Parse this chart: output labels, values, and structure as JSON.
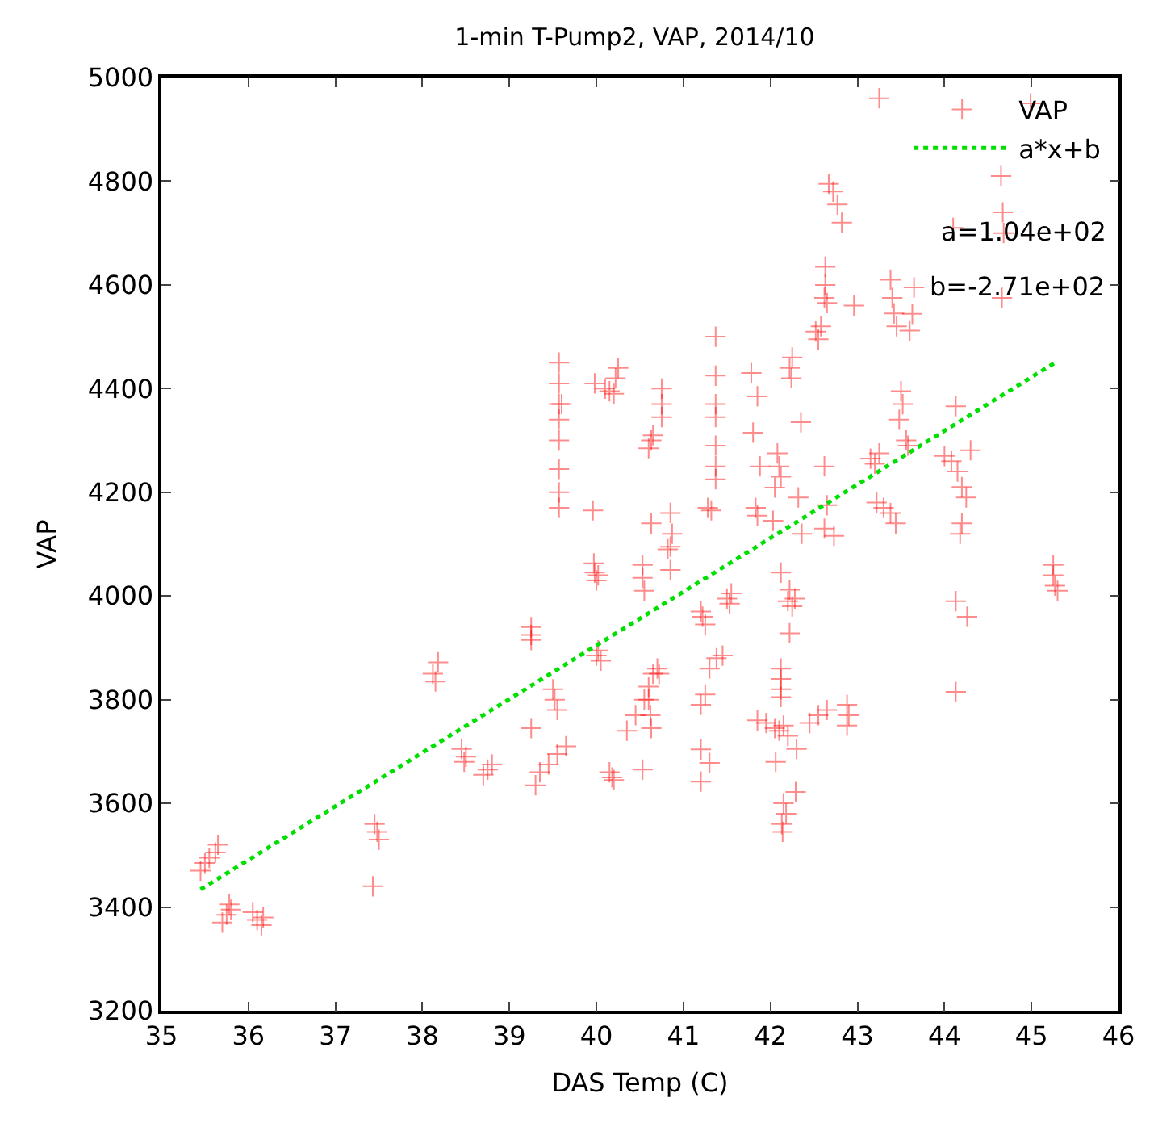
{
  "chart_data": {
    "type": "scatter",
    "title": "1-min T-Pump2, VAP, 2014/10",
    "xlabel": "DAS Temp (C)",
    "ylabel": "VAP",
    "xlim": [
      35,
      46
    ],
    "xticks": [
      35,
      36,
      37,
      38,
      39,
      40,
      41,
      42,
      43,
      44,
      45,
      46
    ],
    "ylim": [
      3200,
      5000
    ],
    "yticks": [
      3200,
      3400,
      3600,
      3800,
      4000,
      4200,
      4400,
      4600,
      4800,
      5000
    ],
    "legend": "top right",
    "annotations": [
      "a=1.04e+02",
      "b=-2.71e+02"
    ],
    "series": [
      {
        "name": "VAP",
        "color": "#ff0000",
        "marker": "cross",
        "x": [
          35.45,
          35.5,
          35.55,
          35.62,
          35.65,
          35.7,
          35.75,
          35.8,
          35.78,
          36.05,
          36.1,
          36.15,
          36.17,
          37.45,
          37.48,
          37.5,
          37.43,
          38.12,
          38.15,
          38.18,
          38.45,
          38.5,
          38.48,
          38.7,
          38.75,
          38.8,
          39.25,
          39.25,
          39.25,
          39.25,
          39.35,
          39.45,
          39.55,
          39.65,
          39.3,
          39.5,
          39.52,
          39.55,
          39.98,
          40.0,
          40.02,
          39.97,
          40.0,
          40.05,
          40.02,
          40.15,
          40.18,
          40.2,
          40.53,
          40.53,
          40.55,
          40.35,
          40.45,
          40.55,
          40.6,
          40.62,
          40.63,
          40.82,
          40.85,
          40.65,
          40.7,
          40.6,
          40.72,
          40.53,
          41.22,
          41.25,
          41.2,
          41.5,
          41.53,
          41.55,
          41.3,
          41.38,
          41.45,
          41.25,
          41.2,
          41.2,
          41.3,
          41.2,
          42.2,
          42.25,
          42.28,
          42.22,
          42.12,
          42.22,
          42.12,
          42.12,
          42.12,
          42.12,
          41.85,
          41.95,
          42.05,
          42.1,
          42.15,
          42.2,
          42.06,
          42.3,
          42.29,
          42.15,
          42.18,
          42.13,
          42.14,
          42.45,
          42.55,
          42.65,
          42.88,
          42.9,
          42.88,
          44.13,
          44.26,
          44.13,
          45.25,
          45.25,
          45.27,
          45.3,
          42.73,
          40.6,
          40.63,
          40.65,
          40.75,
          40.75,
          40.75,
          40.63,
          40.85,
          40.87,
          40.85,
          41.37,
          41.37,
          41.37,
          41.37,
          41.37,
          41.37,
          41.37,
          41.28,
          41.32,
          41.78,
          41.85,
          41.8,
          41.88,
          41.83,
          41.85,
          42.08,
          42.1,
          42.12,
          42.05,
          42.03,
          42.22,
          42.24,
          42.25,
          42.52,
          42.55,
          42.58,
          42.62,
          42.65,
          42.63,
          42.63,
          42.67,
          42.72,
          42.77,
          42.82,
          42.96,
          42.35,
          42.32,
          42.36,
          42.62,
          42.65,
          42.62,
          43.15,
          43.2,
          43.25,
          43.22,
          43.3,
          43.38,
          43.44,
          43.38,
          43.4,
          43.42,
          43.45,
          43.5,
          43.52,
          43.48,
          43.56,
          43.58,
          43.65,
          43.63,
          43.6,
          43.25,
          44.99,
          44.65,
          44.67,
          44.68,
          44.1,
          44.66,
          44.13,
          44.0,
          44.08,
          44.15,
          44.2,
          44.25,
          44.3,
          44.2,
          44.18,
          39.57,
          39.57,
          39.57,
          39.57,
          39.57,
          39.57,
          39.57,
          39.57,
          39.6,
          40.1,
          40.15,
          40.2,
          40.22,
          40.25,
          39.98,
          39.96
        ],
        "values": [
          3470,
          3485,
          3495,
          3505,
          3520,
          3370,
          3385,
          3395,
          3405,
          3390,
          3375,
          3365,
          3380,
          3560,
          3545,
          3530,
          3440,
          3850,
          3835,
          3872,
          3705,
          3690,
          3680,
          3655,
          3665,
          3675,
          3940,
          3925,
          3915,
          3745,
          3660,
          3675,
          3695,
          3710,
          3635,
          3820,
          3800,
          3780,
          4045,
          4030,
          4040,
          4063,
          3885,
          3875,
          3895,
          3660,
          3650,
          3645,
          4060,
          4035,
          4010,
          3740,
          3770,
          3800,
          3825,
          3770,
          3745,
          4090,
          4050,
          3850,
          3860,
          3800,
          3850,
          3665,
          3960,
          3945,
          3970,
          3995,
          3985,
          4005,
          3860,
          3880,
          3885,
          3810,
          3790,
          3704,
          3678,
          3642,
          3990,
          3980,
          3995,
          4012,
          4045,
          3928,
          3860,
          3840,
          3820,
          3805,
          3760,
          3755,
          3745,
          3740,
          3750,
          3730,
          3680,
          3705,
          3622,
          3600,
          3580,
          3560,
          3545,
          3755,
          3770,
          3780,
          3790,
          3770,
          3750,
          3990,
          3960,
          3815,
          4060,
          4040,
          4020,
          4010,
          4116,
          4285,
          4300,
          4310,
          4400,
          4370,
          4345,
          4140,
          4160,
          4120,
          4095,
          4500,
          4425,
          4370,
          4345,
          4290,
          4250,
          4225,
          4170,
          4165,
          4430,
          4385,
          4315,
          4250,
          4170,
          4155,
          4275,
          4250,
          4230,
          4209,
          4145,
          4440,
          4420,
          4460,
          4510,
          4495,
          4520,
          4575,
          4565,
          4600,
          4635,
          4795,
          4780,
          4755,
          4720,
          4560,
          4335,
          4190,
          4120,
          4250,
          4175,
          4130,
          4265,
          4255,
          4275,
          4180,
          4170,
          4160,
          4140,
          4610,
          4575,
          4545,
          4520,
          4395,
          4370,
          4340,
          4300,
          4290,
          4595,
          4544,
          4512,
          4960,
          4950,
          4810,
          4740,
          4700,
          4710,
          4575,
          4366,
          4270,
          4260,
          4240,
          4210,
          4190,
          4281,
          4140,
          4120,
          4450,
          4410,
          4370,
          4340,
          4300,
          4245,
          4200,
          4170,
          4370,
          4400,
          4395,
          4390,
          4420,
          4440,
          4410,
          4165
        ]
      },
      {
        "name": "a*x+b",
        "type": "line",
        "color": "#00e000",
        "line_style": "dotted",
        "marker": "none",
        "x": [
          35.45,
          45.3
        ],
        "values": [
          3434,
          4453
        ]
      }
    ]
  }
}
